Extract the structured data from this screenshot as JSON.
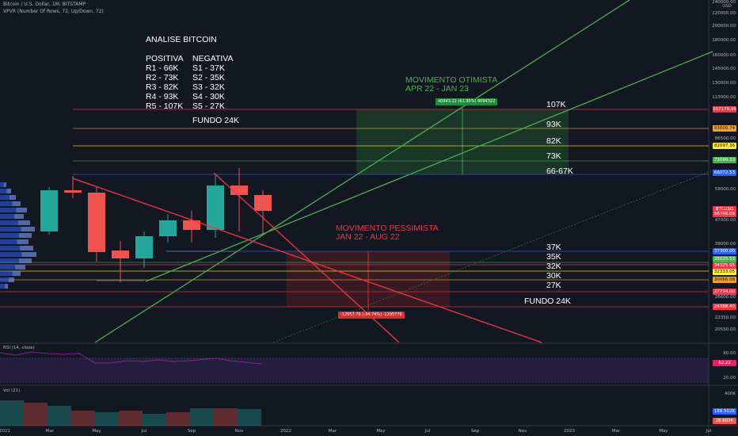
{
  "header": {
    "symbol": "Bitcoin / U.S. Dollar, 1M, BITSTAMP",
    "indicator": "VPVR (Number Of Rows, 72, Up/Down, 72)",
    "currency": "USD"
  },
  "analysis": {
    "title": "ANALISE BITCOIN",
    "positive_header": "POSITIVA",
    "negative_header": "NEGATIVA",
    "positive": [
      "R1 - 66K",
      "R2 - 73K",
      "R3 - 82K",
      "R4 - 93K",
      "R5 - 107K"
    ],
    "negative": [
      "S1 - 37K",
      "S2 - 35K",
      "S3 - 32K",
      "S4 - 30K",
      "S5 - 27K"
    ],
    "bottom": "FUNDO 24K"
  },
  "optimistic": {
    "line1": "MOVIMENTO OTIMISTA",
    "line2": "APR 22 - JAN 23",
    "badge": "40943.22 (61.95%) 4094322"
  },
  "pessimistic": {
    "line1": "MOVIMENTO PESSIMISTA",
    "line2": "JAN 22 - AUG 22",
    "badge": "-12957.76 (-34.74%) -1295776"
  },
  "levels": {
    "upper": [
      "107K",
      "93K",
      "82K",
      "73K",
      "66-67K"
    ],
    "lower": [
      "37K",
      "35K",
      "32K",
      "30K",
      "27K"
    ],
    "bottom": "FUNDO 24K"
  },
  "price_axis": {
    "ticks": [
      "240000.00",
      "220000.00",
      "200000.00",
      "180000.00",
      "160000.00",
      "145000.00",
      "130000.00",
      "115000.00",
      "86500.00",
      "59000.00",
      "47000.00",
      "39000.00",
      "26600.00",
      "22350.00",
      "20550.00"
    ],
    "tags": [
      {
        "text": "107179.96",
        "color": "#f23645"
      },
      {
        "text": "93000.74",
        "color": "#f0a030"
      },
      {
        "text": "82097.36",
        "color": "#ffeb3b"
      },
      {
        "text": "73099.23",
        "color": "#4caf50"
      },
      {
        "text": "66072.53",
        "color": "#2962ff"
      },
      {
        "text": "BTCUSD",
        "color": "#f23645"
      },
      {
        "text": "56746.09",
        "color": "#f23645"
      },
      {
        "text": "37300.00",
        "color": "#2962ff"
      },
      {
        "text": "35025.53",
        "color": "#4caf50"
      },
      {
        "text": "34325.95",
        "color": "#f23645"
      },
      {
        "text": "32333.05",
        "color": "#ffeb3b"
      },
      {
        "text": "30066.08",
        "color": "#f0a030"
      },
      {
        "text": "27734.00",
        "color": "#f23645"
      },
      {
        "text": "24388.40",
        "color": "#f23645"
      }
    ]
  },
  "rsi": {
    "label": "RSI (14, close)",
    "ticks": [
      "80.00",
      "20.00"
    ],
    "value": "62.22"
  },
  "volume": {
    "label": "Vol (21)",
    "tick": "400K",
    "values": [
      "189.502K",
      "28.683K"
    ]
  },
  "time_axis": [
    "2021",
    "Mar",
    "May",
    "Jul",
    "Sep",
    "Nov",
    "2022",
    "Mar",
    "May",
    "Jul",
    "Sep",
    "Nov",
    "2023",
    "Mar",
    "May",
    "Jul"
  ],
  "colors": {
    "bg": "#131722",
    "up": "#26a69a",
    "down": "#ef5350",
    "green_line": "#4caf50",
    "red_line": "#f23645",
    "opt_zone": "#1b3a2a",
    "pes_zone": "#3d1b22"
  }
}
